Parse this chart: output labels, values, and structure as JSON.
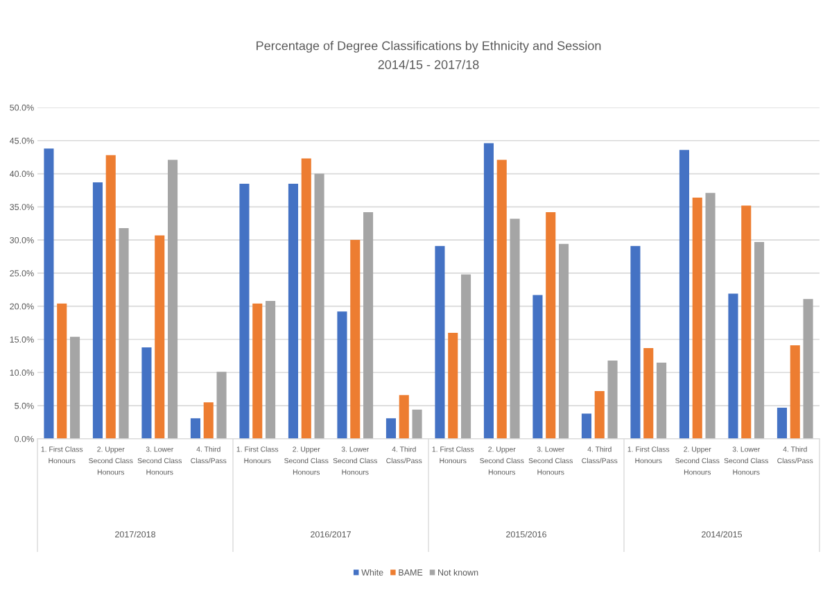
{
  "chart_data": {
    "type": "bar",
    "title": "Percentage of Degree Classifications by Ethnicity and Session\n2014/15 - 2017/18",
    "categories": [
      "1. First Class\nHonours",
      "2. Upper\nSecond Class\nHonours",
      "3. Lower\nSecond Class\nHonours",
      "4. Third\nClass/Pass",
      "1. First Class\nHonours",
      "2. Upper\nSecond Class\nHonours",
      "3. Lower\nSecond Class\nHonours",
      "4. Third\nClass/Pass",
      "1. First Class\nHonours",
      "2. Upper\nSecond Class\nHonours",
      "3. Lower\nSecond Class\nHonours",
      "4. Third\nClass/Pass",
      "1. First Class\nHonours",
      "2. Upper\nSecond Class\nHonours",
      "3. Lower\nSecond Class\nHonours",
      "4. Third\nClass/Pass"
    ],
    "annotations": [
      "2017/2018",
      "2016/2017",
      "2015/2016",
      "2014/2015"
    ],
    "series": [
      {
        "name": "White",
        "color": "#4472c4",
        "values": [
          43.8,
          38.7,
          13.8,
          3.1,
          38.5,
          38.5,
          19.2,
          3.1,
          29.1,
          44.6,
          21.7,
          3.8,
          29.1,
          43.6,
          21.9,
          4.7
        ]
      },
      {
        "name": "BAME",
        "color": "#ed7d31",
        "values": [
          20.4,
          42.8,
          30.7,
          5.5,
          20.4,
          42.3,
          30.0,
          6.6,
          16.0,
          42.1,
          34.2,
          7.2,
          13.7,
          36.4,
          35.2,
          14.1
        ]
      },
      {
        "name": "Not known",
        "color": "#a5a5a5",
        "values": [
          15.4,
          31.8,
          42.1,
          10.1,
          20.8,
          40.0,
          34.2,
          4.4,
          24.8,
          33.2,
          29.4,
          11.8,
          11.5,
          37.1,
          29.7,
          21.1
        ]
      }
    ],
    "ylim": [
      0,
      50
    ],
    "yticks": [
      {
        "value": 0,
        "label": "0.0%"
      },
      {
        "value": 5,
        "label": "5.0%"
      },
      {
        "value": 10,
        "label": "10.0%"
      },
      {
        "value": 15,
        "label": "15.0%"
      },
      {
        "value": 20,
        "label": "20.0%"
      },
      {
        "value": 25,
        "label": "25.0%"
      },
      {
        "value": 30,
        "label": "30.0%"
      },
      {
        "value": 35,
        "label": "35.0%"
      },
      {
        "value": 40,
        "label": "40.0%"
      },
      {
        "value": 45,
        "label": "45.0%"
      },
      {
        "value": 50,
        "label": "50.0%"
      }
    ],
    "grid": "y",
    "legend": "bottom"
  }
}
